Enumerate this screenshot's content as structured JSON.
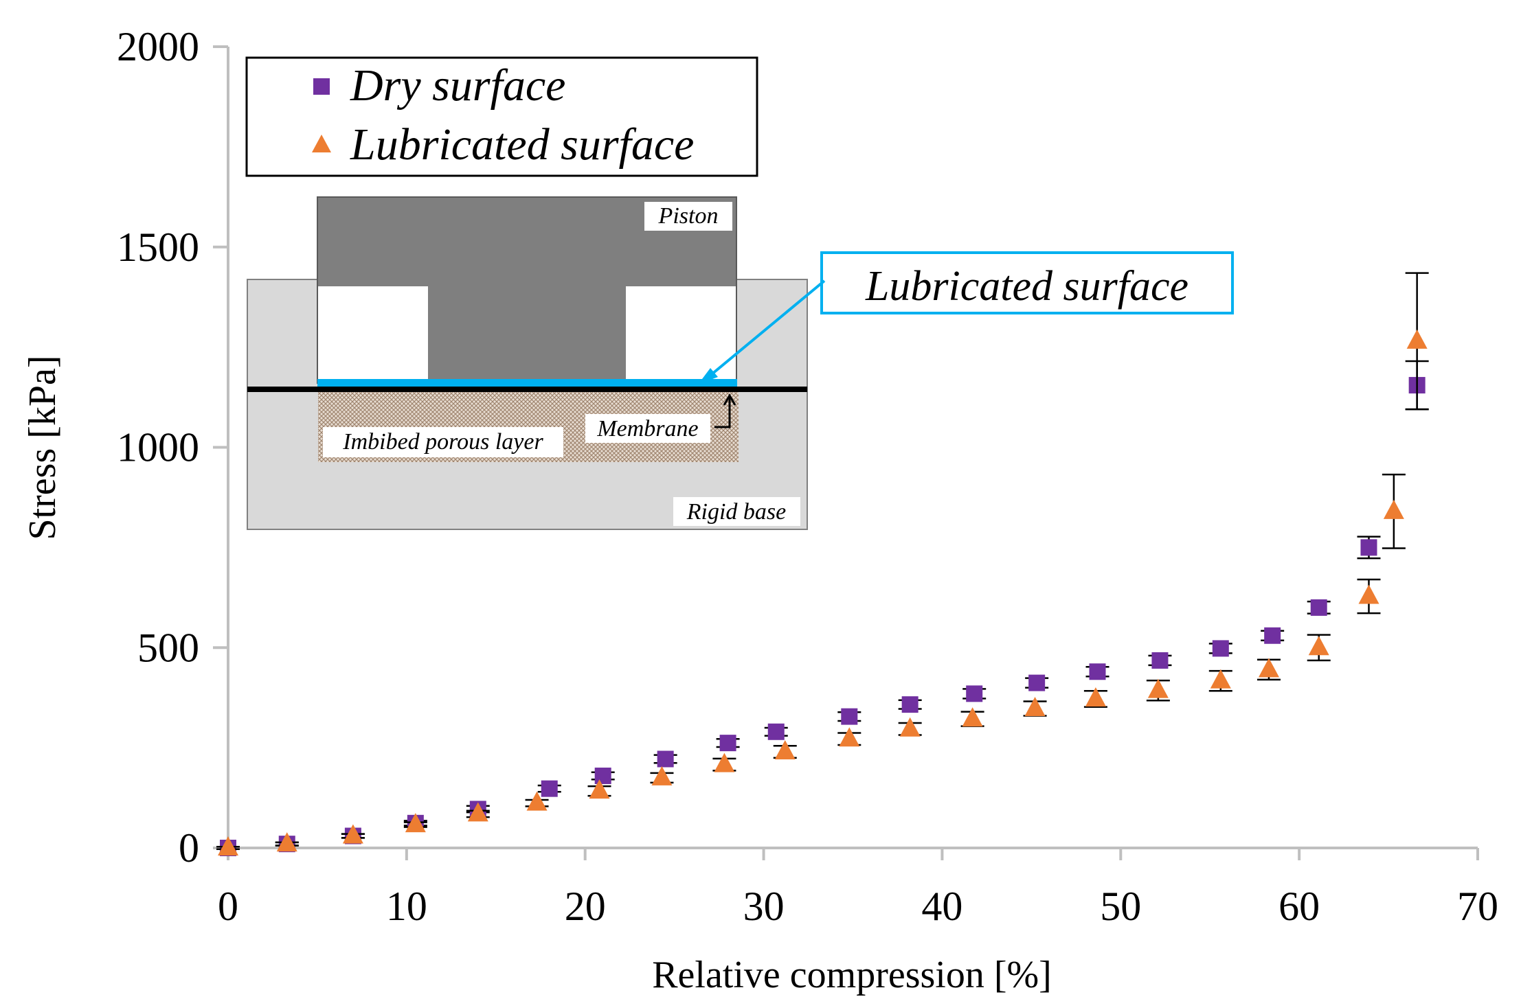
{
  "chart_data": {
    "type": "scatter",
    "xlabel": "Relative compression [%]",
    "ylabel": "Stress [kPa]",
    "xlim": [
      0,
      70
    ],
    "ylim": [
      0,
      2000
    ],
    "x_ticks": [
      "0",
      "10",
      "20",
      "30",
      "40",
      "50",
      "60",
      "70"
    ],
    "y_ticks": [
      "0",
      "500",
      "1000",
      "1500",
      "2000"
    ],
    "grid": false,
    "legend_position": "top-left",
    "series": [
      {
        "name": "Dry surface",
        "marker": "square",
        "color": "#7030a0",
        "points": [
          {
            "x": 0,
            "y": 0,
            "err": 3
          },
          {
            "x": 3.3,
            "y": 10,
            "err": 4
          },
          {
            "x": 7,
            "y": 30,
            "err": 5
          },
          {
            "x": 10.5,
            "y": 62,
            "err": 6
          },
          {
            "x": 14,
            "y": 97,
            "err": 8
          },
          {
            "x": 18,
            "y": 148,
            "err": 8
          },
          {
            "x": 21,
            "y": 180,
            "err": 9
          },
          {
            "x": 24.5,
            "y": 222,
            "err": 10
          },
          {
            "x": 28,
            "y": 262,
            "err": 10
          },
          {
            "x": 30.7,
            "y": 290,
            "err": 10
          },
          {
            "x": 34.8,
            "y": 328,
            "err": 11
          },
          {
            "x": 38.2,
            "y": 358,
            "err": 11
          },
          {
            "x": 41.8,
            "y": 385,
            "err": 12
          },
          {
            "x": 45.3,
            "y": 412,
            "err": 12
          },
          {
            "x": 48.7,
            "y": 440,
            "err": 12
          },
          {
            "x": 52.2,
            "y": 468,
            "err": 12
          },
          {
            "x": 55.6,
            "y": 498,
            "err": 12
          },
          {
            "x": 58.5,
            "y": 530,
            "err": 12
          },
          {
            "x": 61.1,
            "y": 600,
            "err": 15
          },
          {
            "x": 63.9,
            "y": 750,
            "err": 27
          },
          {
            "x": 66.6,
            "y": 1155,
            "err": 60
          }
        ]
      },
      {
        "name": "Lubricated surface",
        "marker": "triangle",
        "color": "#ed7d31",
        "points": [
          {
            "x": 0,
            "y": 0,
            "err": 3
          },
          {
            "x": 3.3,
            "y": 10,
            "err": 4
          },
          {
            "x": 7,
            "y": 30,
            "err": 5
          },
          {
            "x": 10.5,
            "y": 58,
            "err": 6
          },
          {
            "x": 14,
            "y": 85,
            "err": 8
          },
          {
            "x": 17.3,
            "y": 112,
            "err": 8
          },
          {
            "x": 20.8,
            "y": 142,
            "err": 12
          },
          {
            "x": 24.3,
            "y": 175,
            "err": 12
          },
          {
            "x": 27.8,
            "y": 208,
            "err": 15
          },
          {
            "x": 31.2,
            "y": 240,
            "err": 15
          },
          {
            "x": 34.8,
            "y": 272,
            "err": 15
          },
          {
            "x": 38.2,
            "y": 297,
            "err": 15
          },
          {
            "x": 41.7,
            "y": 322,
            "err": 18
          },
          {
            "x": 45.2,
            "y": 348,
            "err": 18
          },
          {
            "x": 48.6,
            "y": 372,
            "err": 20
          },
          {
            "x": 52.1,
            "y": 393,
            "err": 25
          },
          {
            "x": 55.6,
            "y": 417,
            "err": 25
          },
          {
            "x": 58.3,
            "y": 445,
            "err": 25
          },
          {
            "x": 61.1,
            "y": 500,
            "err": 32
          },
          {
            "x": 63.9,
            "y": 628,
            "err": 42
          },
          {
            "x": 65.3,
            "y": 840,
            "err": 92
          },
          {
            "x": 66.6,
            "y": 1265,
            "err": 170
          }
        ]
      }
    ],
    "legend": [
      {
        "name": "Dry surface",
        "marker": "square",
        "color": "#7030a0"
      },
      {
        "name": "Lubricated surface",
        "marker": "triangle",
        "color": "#ed7d31"
      }
    ]
  },
  "inset": {
    "piston_label": "Piston",
    "membrane_label": "Membrane",
    "porous_label": "Imbibed porous layer",
    "base_label": "Rigid base",
    "callout_label": "Lubricated surface",
    "lubricant_color": "#00b0f0"
  }
}
